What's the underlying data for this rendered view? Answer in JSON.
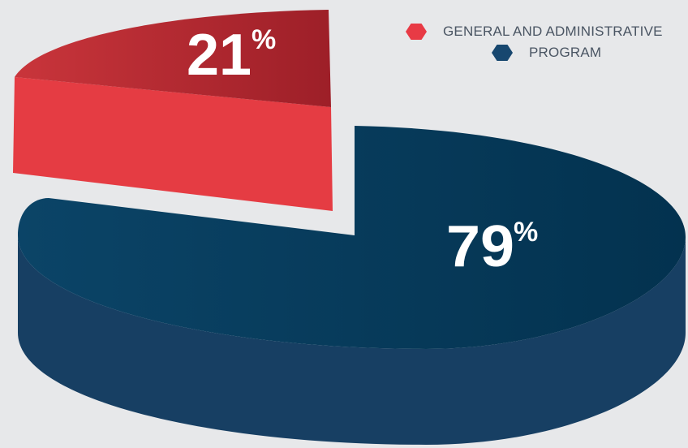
{
  "chart_data": {
    "type": "pie",
    "categories": [
      "GENERAL AND ADMINISTRATIVE",
      "PROGRAM"
    ],
    "values": [
      21,
      79
    ],
    "labels": [
      "21%",
      "79%"
    ],
    "colors": {
      "general_top": "#a2262e",
      "general_side": "#e53c43",
      "program_top": "#04375a",
      "program_side": "#173f63"
    },
    "legend_position": "top-right"
  },
  "legend": [
    {
      "label": "GENERAL AND ADMINISTRATIVE",
      "color": "#e83a45"
    },
    {
      "label": "PROGRAM",
      "color": "#17476f"
    }
  ]
}
